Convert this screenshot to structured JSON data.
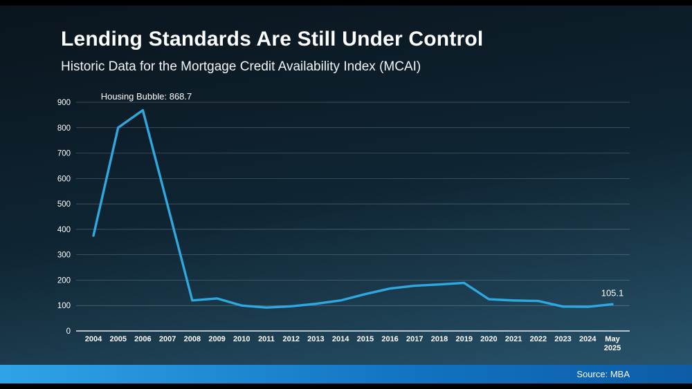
{
  "slide": {
    "title": "Lending Standards Are Still Under Control",
    "subtitle": "Historic Data for the Mortgage Credit Availability Index (MCAI)",
    "source": "Source: MBA"
  },
  "chart_data": {
    "type": "line",
    "title": "Historic Data for the Mortgage Credit Availability Index (MCAI)",
    "categories": [
      "2004",
      "2005",
      "2006",
      "2007",
      "2008",
      "2009",
      "2010",
      "2011",
      "2012",
      "2013",
      "2014",
      "2015",
      "2016",
      "2017",
      "2018",
      "2019",
      "2020",
      "2021",
      "2022",
      "2023",
      "2024",
      "May 2025"
    ],
    "values": [
      375,
      800,
      868.7,
      495,
      120,
      128,
      100,
      92,
      97,
      107,
      120,
      145,
      167,
      178,
      183,
      189,
      125,
      120,
      118,
      96,
      95,
      105.1
    ],
    "ylim": [
      0,
      900
    ],
    "ytick_step": 100,
    "grid": true,
    "legend_position": "none",
    "line_color": "#2FA8DF",
    "annotations": [
      {
        "text": "Housing Bubble: 868.7",
        "category_index": 1,
        "placement": "top",
        "anchor": "start",
        "dx": -25
      },
      {
        "text": "105.1",
        "category_index": 21,
        "placement": "above-point",
        "anchor": "middle",
        "dx": 0
      }
    ]
  },
  "colors": {
    "line": "#2FA8DF",
    "text": "#FFFFFF",
    "grid": "rgba(255,255,255,0.28)",
    "axis_baseline": "#E8EEF2",
    "footer_gradient_left": "#2FA3E8",
    "footer_gradient_right": "#0D5CA6"
  }
}
